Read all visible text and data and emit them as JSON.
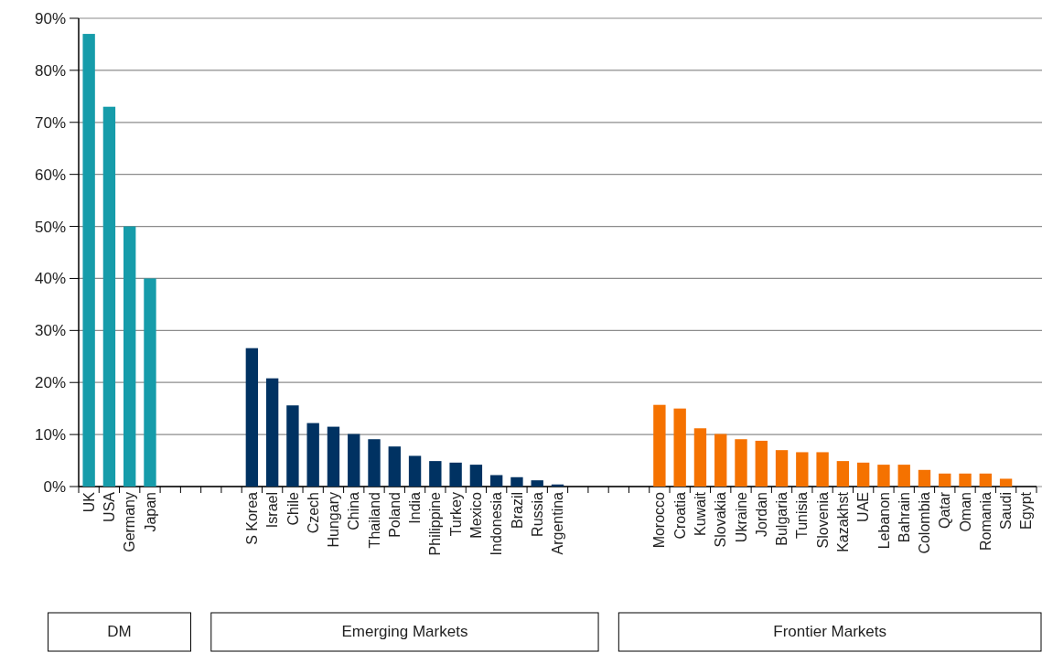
{
  "chart_data": {
    "type": "bar",
    "categories": [
      "UK",
      "USA",
      "Germany",
      "Japan",
      null,
      null,
      null,
      null,
      "S Korea",
      "Israel",
      "Chile",
      "Czech",
      "Hungary",
      "China",
      "Thailand",
      "Poland",
      "India",
      "Philippine",
      "Turkey",
      "Mexico",
      "Indonesia",
      "Brazil",
      "Russia",
      "Argentina",
      null,
      null,
      null,
      null,
      "Morocco",
      "Croatia",
      "Kuwait",
      "Slovakia",
      "Ukraine",
      "Jordan",
      "Bulgaria",
      "Tunisia",
      "Slovenia",
      "Kazakhst",
      "UAE",
      "Lebanon",
      "Bahrain",
      "Colombia",
      "Qatar",
      "Oman",
      "Romania",
      "Saudi",
      "Egypt"
    ],
    "values": [
      87,
      73,
      50,
      40,
      null,
      null,
      null,
      null,
      26.6,
      20.8,
      15.6,
      12.2,
      11.5,
      10.1,
      9.1,
      7.7,
      5.9,
      4.9,
      4.6,
      4.2,
      2.2,
      1.8,
      1.2,
      0.4,
      null,
      null,
      null,
      null,
      15.7,
      15.0,
      11.2,
      10.1,
      9.1,
      8.8,
      7.0,
      6.6,
      6.6,
      4.9,
      4.6,
      4.2,
      4.2,
      3.2,
      2.5,
      2.5,
      2.5,
      1.5,
      null
    ],
    "colors": [
      "#169caa",
      "#169caa",
      "#169caa",
      "#169caa",
      null,
      null,
      null,
      null,
      "#003262",
      "#003262",
      "#003262",
      "#003262",
      "#003262",
      "#003262",
      "#003262",
      "#003262",
      "#003262",
      "#003262",
      "#003262",
      "#003262",
      "#003262",
      "#003262",
      "#003262",
      "#003262",
      null,
      null,
      null,
      null,
      "#f57200",
      "#f57200",
      "#f57200",
      "#f57200",
      "#f57200",
      "#f57200",
      "#f57200",
      "#f57200",
      "#f57200",
      "#f57200",
      "#f57200",
      "#f57200",
      "#f57200",
      "#f57200",
      "#f57200",
      "#f57200",
      "#f57200",
      "#f57200",
      null
    ],
    "ylim": [
      0,
      90
    ],
    "yticks": [
      {
        "value": 0,
        "label": "0%"
      },
      {
        "value": 10,
        "label": "10%"
      },
      {
        "value": 20,
        "label": "20%"
      },
      {
        "value": 30,
        "label": "30%"
      },
      {
        "value": 40,
        "label": "40%"
      },
      {
        "value": 50,
        "label": "50%"
      },
      {
        "value": 60,
        "label": "60%"
      },
      {
        "value": 70,
        "label": "70%"
      },
      {
        "value": 80,
        "label": "80%"
      },
      {
        "value": 90,
        "label": "90%"
      }
    ],
    "grid": "y",
    "annotations": [
      "DM",
      "Emerging Markets",
      "Frontier Markets"
    ]
  }
}
